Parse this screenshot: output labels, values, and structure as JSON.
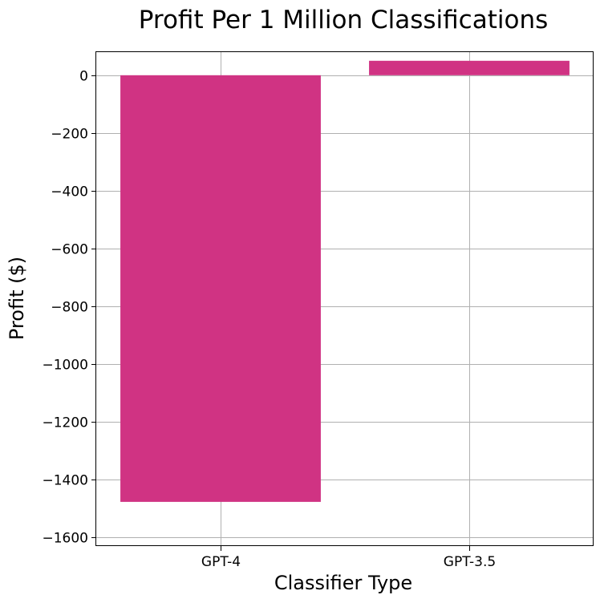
{
  "chart_data": {
    "type": "bar",
    "title": "Profit Per 1 Million Classifications",
    "xlabel": "Classifier Type",
    "ylabel": "Profit ($)",
    "categories": [
      "GPT-4",
      "GPT-3.5"
    ],
    "values": [
      -1477,
      50
    ],
    "ylim": [
      -1630,
      80
    ],
    "yticks": [
      0,
      -200,
      -400,
      -600,
      -800,
      -1000,
      -1200,
      -1400,
      -1600
    ],
    "ytick_labels": [
      "0",
      "−200",
      "−400",
      "−600",
      "−800",
      "−1000",
      "−1200",
      "−1400",
      "−1600"
    ],
    "grid": true,
    "bar_color": "#d03383",
    "grid_color": "#b0b0b0"
  }
}
